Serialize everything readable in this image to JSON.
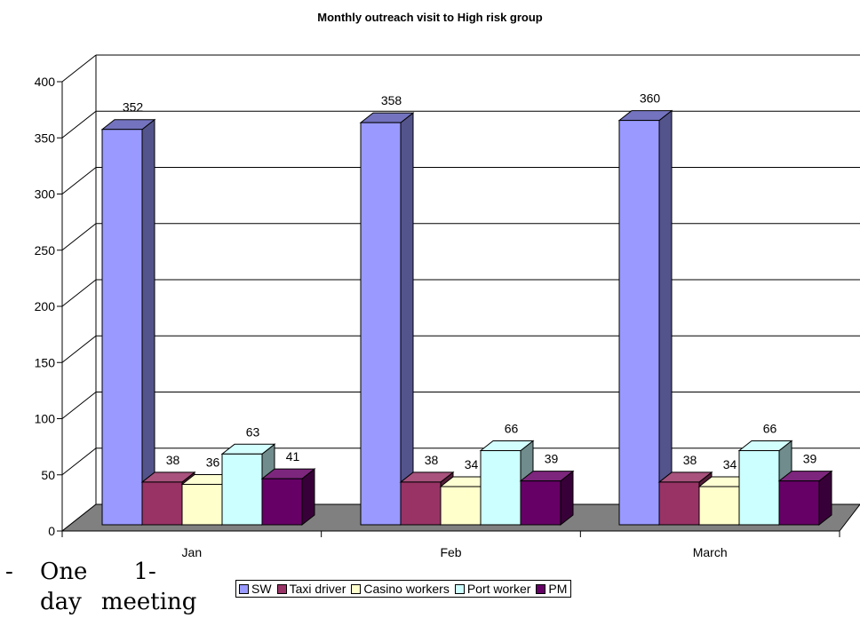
{
  "chart_data": {
    "type": "bar",
    "title": "Monthly outreach visit to High risk group",
    "categories": [
      "Jan",
      "Feb",
      "March"
    ],
    "series": [
      {
        "name": "SW",
        "values": [
          352,
          358,
          360
        ],
        "color": "#9999ff"
      },
      {
        "name": "Taxi driver",
        "values": [
          38,
          38,
          38
        ],
        "color": "#993366"
      },
      {
        "name": "Casino workers",
        "values": [
          36,
          34,
          34
        ],
        "color": "#ffffcc"
      },
      {
        "name": "Port worker",
        "values": [
          63,
          66,
          66
        ],
        "color": "#ccffff"
      },
      {
        "name": "PM",
        "values": [
          41,
          39,
          39
        ],
        "color": "#660066"
      }
    ],
    "y_ticks": [
      "0",
      "50",
      "100",
      "150",
      "200",
      "250",
      "300",
      "350",
      "400"
    ],
    "ylim": [
      0,
      400
    ],
    "grid": true,
    "legend_position": "bottom",
    "style": "3d-clustered-column"
  },
  "note": {
    "bullet": "-",
    "line1": [
      "One",
      "1-"
    ],
    "line2": [
      "day",
      "meeting"
    ]
  }
}
